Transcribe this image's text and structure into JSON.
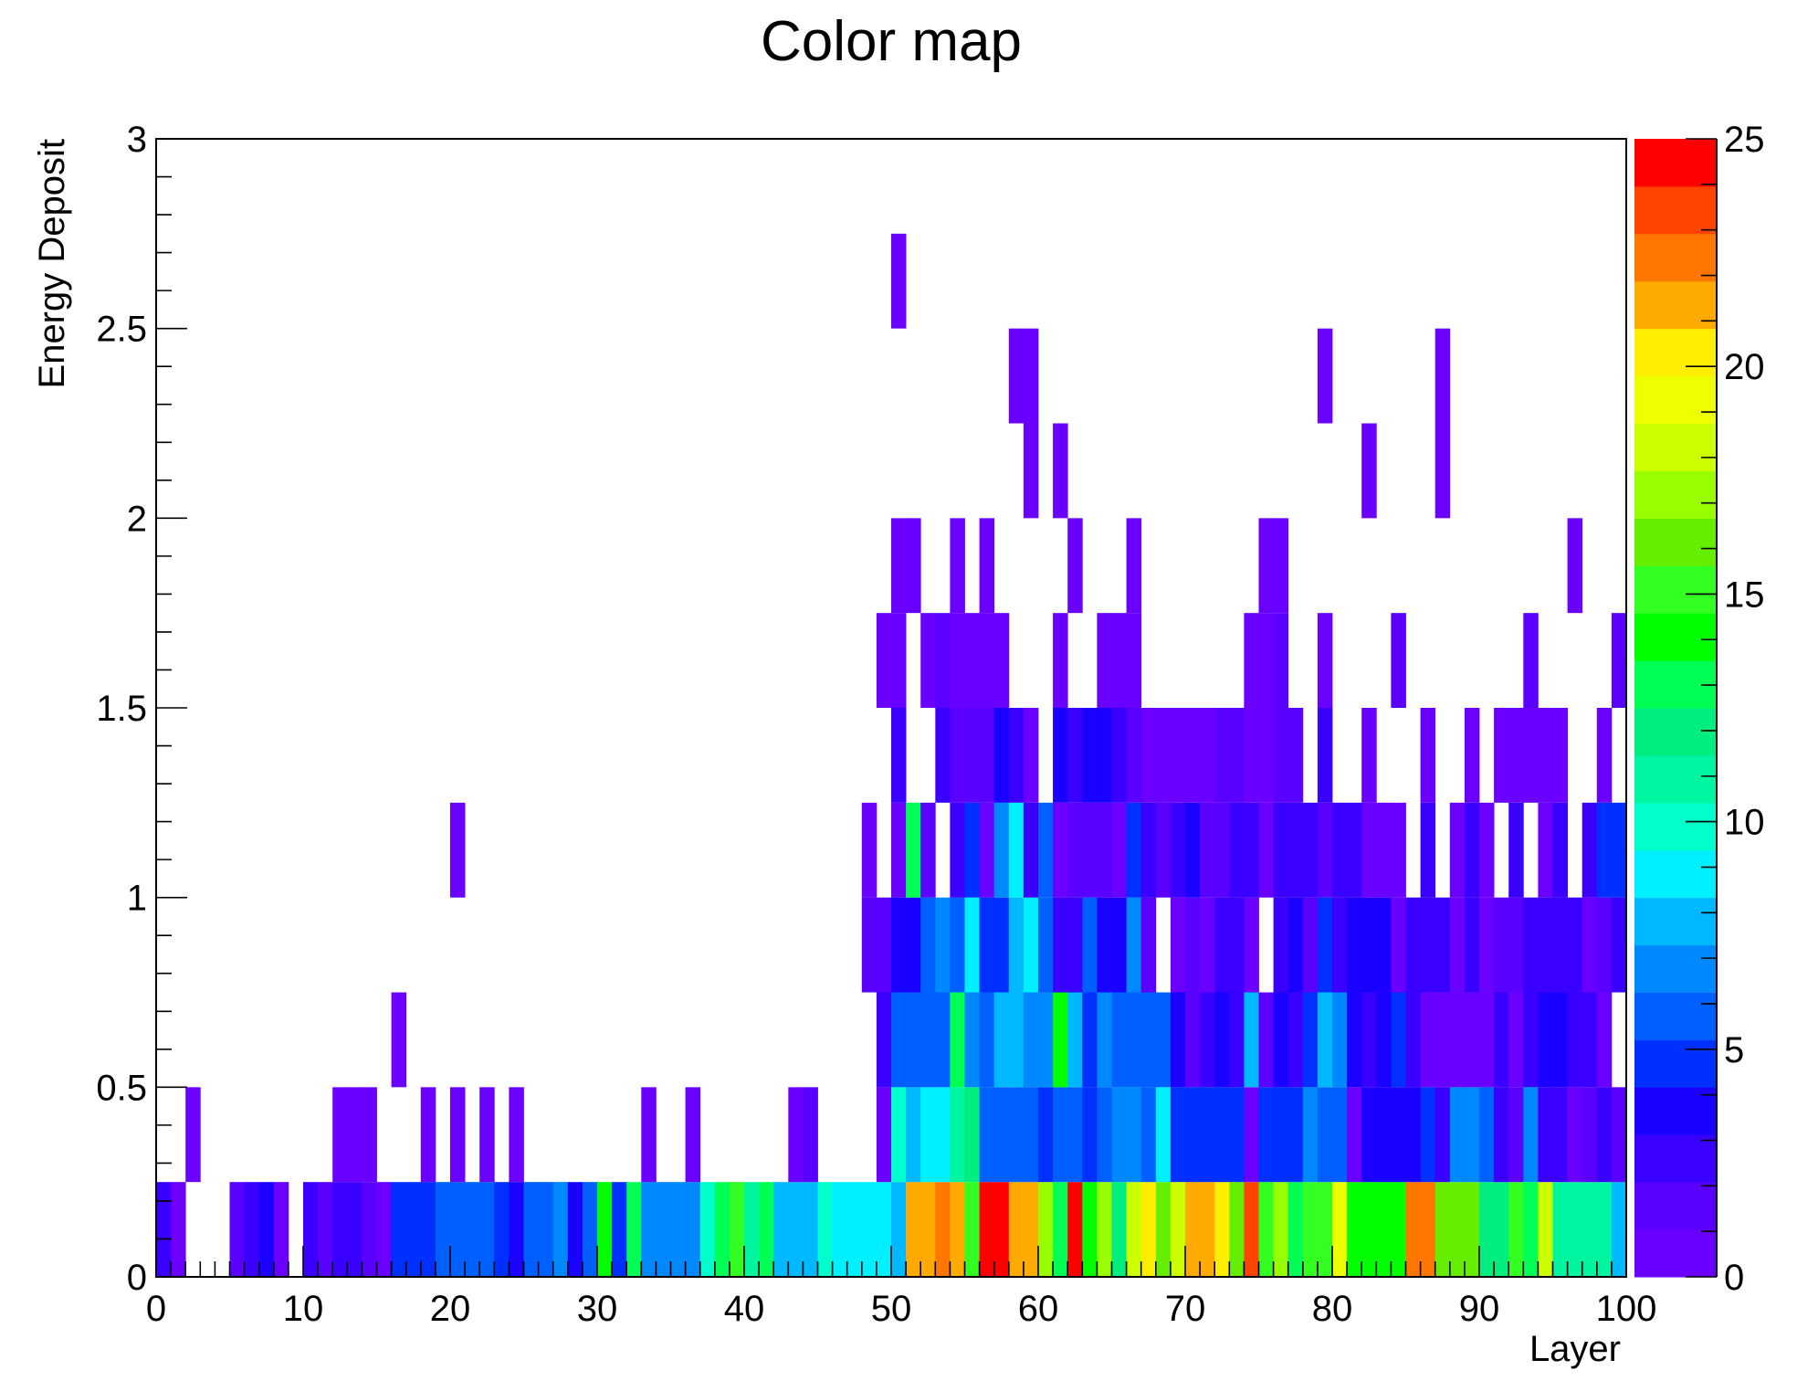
{
  "chart_data": {
    "type": "heatmap",
    "title": "Color map",
    "xlabel": "Layer",
    "ylabel": "Energy Deposit",
    "xlim": [
      0,
      100
    ],
    "ylim": [
      0,
      3
    ],
    "zlim": [
      0,
      25
    ],
    "x_bin_width": 1,
    "y_bin_width": 0.25,
    "x_ticks": [
      "0",
      "10",
      "20",
      "30",
      "40",
      "50",
      "60",
      "70",
      "80",
      "90",
      "100"
    ],
    "y_ticks": [
      "0",
      "0.5",
      "1",
      "1.5",
      "2",
      "2.5",
      "3"
    ],
    "z_ticks": [
      "0",
      "5",
      "10",
      "15",
      "20",
      "25"
    ],
    "palette": [
      "#6a00ff",
      "#5a00ff",
      "#3a00ff",
      "#1a00ff",
      "#0030ff",
      "#0060ff",
      "#0088ff",
      "#00b8ff",
      "#00f0ff",
      "#00ffcc",
      "#00f5a0",
      "#00ee80",
      "#00ff55",
      "#00ff00",
      "#33ff22",
      "#66ee00",
      "#99ff00",
      "#ccff00",
      "#eeff00",
      "#ffee00",
      "#ffaa00",
      "#ff7700",
      "#ff4400",
      "#ff0000"
    ],
    "rows": [
      {
        "y": 0.125,
        "values": [
          3,
          1,
          0,
          0,
          0,
          2,
          3,
          4,
          1,
          0,
          3,
          2,
          3,
          3,
          2,
          1,
          5,
          5,
          5,
          6,
          6,
          6,
          6,
          5,
          4,
          6,
          6,
          7,
          4,
          6,
          14,
          5,
          13,
          7,
          7,
          7,
          7,
          10,
          13,
          15,
          11,
          13,
          8,
          8,
          8,
          10,
          9,
          9,
          9,
          9,
          8,
          21,
          21,
          22,
          21,
          15,
          24,
          24,
          21,
          21,
          17,
          13,
          24,
          14,
          17,
          12,
          18,
          20,
          16,
          18,
          21,
          21,
          20,
          16,
          23,
          15,
          17,
          13,
          15,
          15,
          19,
          14,
          14,
          14,
          14,
          22,
          22,
          16,
          16,
          16,
          12,
          12,
          15,
          13,
          18,
          11,
          11,
          11,
          11,
          8
        ]
      },
      {
        "y": 0.375,
        "values": [
          0,
          0,
          1,
          0,
          0,
          0,
          0,
          0,
          0,
          0,
          0,
          0,
          1,
          1,
          1,
          0,
          0,
          0,
          1,
          0,
          1,
          0,
          1,
          0,
          1,
          0,
          0,
          0,
          0,
          0,
          0,
          0,
          0,
          1,
          0,
          0,
          1,
          0,
          0,
          0,
          0,
          0,
          0,
          1,
          2,
          0,
          0,
          0,
          0,
          1,
          10,
          8,
          9,
          9,
          11,
          12,
          6,
          6,
          6,
          6,
          5,
          6,
          6,
          5,
          6,
          7,
          7,
          6,
          9,
          5,
          5,
          5,
          5,
          5,
          1,
          5,
          5,
          5,
          7,
          6,
          6,
          1,
          4,
          4,
          4,
          4,
          5,
          3,
          7,
          7,
          6,
          3,
          2,
          7,
          3,
          3,
          1,
          2,
          3,
          2
        ]
      },
      {
        "y": 0.625,
        "values": [
          0,
          0,
          0,
          0,
          0,
          0,
          0,
          0,
          0,
          0,
          0,
          0,
          0,
          0,
          0,
          0,
          1,
          0,
          0,
          0,
          0,
          0,
          0,
          0,
          0,
          0,
          0,
          0,
          0,
          0,
          0,
          0,
          0,
          0,
          0,
          0,
          0,
          0,
          0,
          0,
          0,
          0,
          0,
          0,
          0,
          0,
          0,
          0,
          0,
          3,
          6,
          6,
          6,
          6,
          13,
          7,
          6,
          8,
          8,
          7,
          7,
          14,
          8,
          5,
          7,
          6,
          6,
          6,
          6,
          4,
          2,
          3,
          4,
          3,
          8,
          2,
          4,
          3,
          5,
          8,
          7,
          4,
          3,
          4,
          5,
          3,
          1,
          1,
          1,
          1,
          1,
          3,
          1,
          3,
          4,
          4,
          3,
          3,
          1,
          0
        ]
      },
      {
        "y": 0.875,
        "values": [
          0,
          0,
          0,
          0,
          0,
          0,
          0,
          0,
          0,
          0,
          0,
          0,
          0,
          0,
          0,
          0,
          0,
          0,
          0,
          0,
          0,
          0,
          0,
          0,
          0,
          0,
          0,
          0,
          0,
          0,
          0,
          0,
          0,
          0,
          0,
          0,
          0,
          0,
          0,
          0,
          0,
          0,
          0,
          0,
          0,
          0,
          0,
          0,
          2,
          2,
          4,
          4,
          6,
          7,
          6,
          9,
          5,
          5,
          8,
          9,
          6,
          3,
          3,
          6,
          4,
          4,
          7,
          2,
          0,
          1,
          2,
          1,
          3,
          3,
          1,
          0,
          3,
          4,
          2,
          5,
          3,
          4,
          4,
          4,
          1,
          3,
          3,
          3,
          1,
          3,
          1,
          2,
          2,
          3,
          3,
          3,
          3,
          1,
          2,
          3
        ]
      },
      {
        "y": 1.125,
        "values": [
          0,
          0,
          0,
          0,
          0,
          0,
          0,
          0,
          0,
          0,
          0,
          0,
          0,
          0,
          0,
          0,
          0,
          0,
          0,
          0,
          1,
          0,
          0,
          0,
          0,
          0,
          0,
          0,
          0,
          0,
          0,
          0,
          0,
          0,
          0,
          0,
          0,
          0,
          0,
          0,
          0,
          0,
          0,
          0,
          0,
          0,
          0,
          0,
          1,
          0,
          1,
          13,
          2,
          0,
          3,
          5,
          1,
          7,
          9,
          3,
          6,
          1,
          2,
          2,
          2,
          1,
          5,
          3,
          2,
          3,
          4,
          2,
          2,
          3,
          3,
          1,
          3,
          3,
          3,
          2,
          3,
          3,
          1,
          1,
          1,
          0,
          3,
          0,
          1,
          3,
          1,
          0,
          3,
          0,
          1,
          3,
          0,
          3,
          5,
          5
        ]
      },
      {
        "y": 1.375,
        "values": [
          0,
          0,
          0,
          0,
          0,
          0,
          0,
          0,
          0,
          0,
          0,
          0,
          0,
          0,
          0,
          0,
          0,
          0,
          0,
          0,
          0,
          0,
          0,
          0,
          0,
          0,
          0,
          0,
          0,
          0,
          0,
          0,
          0,
          0,
          0,
          0,
          0,
          0,
          0,
          0,
          0,
          0,
          0,
          0,
          0,
          0,
          0,
          0,
          0,
          0,
          3,
          0,
          0,
          3,
          2,
          2,
          2,
          4,
          3,
          1,
          0,
          4,
          3,
          4,
          4,
          3,
          2,
          1,
          1,
          1,
          1,
          1,
          2,
          2,
          1,
          1,
          2,
          2,
          0,
          3,
          0,
          0,
          1,
          0,
          0,
          0,
          1,
          0,
          0,
          1,
          0,
          1,
          1,
          1,
          1,
          1,
          0,
          0,
          1,
          0
        ]
      },
      {
        "y": 1.625,
        "values": [
          0,
          0,
          0,
          0,
          0,
          0,
          0,
          0,
          0,
          0,
          0,
          0,
          0,
          0,
          0,
          0,
          0,
          0,
          0,
          0,
          0,
          0,
          0,
          0,
          0,
          0,
          0,
          0,
          0,
          0,
          0,
          0,
          0,
          0,
          0,
          0,
          0,
          0,
          0,
          0,
          0,
          0,
          0,
          0,
          0,
          0,
          0,
          0,
          0,
          1,
          1,
          0,
          1,
          2,
          1,
          1,
          1,
          1,
          0,
          0,
          0,
          1,
          0,
          0,
          1,
          1,
          1,
          0,
          0,
          0,
          0,
          0,
          0,
          0,
          1,
          1,
          2,
          0,
          0,
          1,
          0,
          0,
          0,
          0,
          2,
          0,
          0,
          0,
          0,
          0,
          0,
          0,
          0,
          2,
          0,
          0,
          0,
          0,
          0,
          2
        ]
      },
      {
        "y": 1.875,
        "values": [
          0,
          0,
          0,
          0,
          0,
          0,
          0,
          0,
          0,
          0,
          0,
          0,
          0,
          0,
          0,
          0,
          0,
          0,
          0,
          0,
          0,
          0,
          0,
          0,
          0,
          0,
          0,
          0,
          0,
          0,
          0,
          0,
          0,
          0,
          0,
          0,
          0,
          0,
          0,
          0,
          0,
          0,
          0,
          0,
          0,
          0,
          0,
          0,
          0,
          0,
          1,
          1,
          0,
          0,
          1,
          0,
          1,
          0,
          0,
          0,
          0,
          0,
          1,
          0,
          0,
          0,
          1,
          0,
          0,
          0,
          0,
          0,
          0,
          0,
          0,
          1,
          1,
          0,
          0,
          0,
          0,
          0,
          0,
          0,
          0,
          0,
          0,
          0,
          0,
          0,
          0,
          0,
          0,
          0,
          0,
          0,
          1,
          0,
          0,
          0
        ]
      },
      {
        "y": 2.125,
        "values": [
          0,
          0,
          0,
          0,
          0,
          0,
          0,
          0,
          0,
          0,
          0,
          0,
          0,
          0,
          0,
          0,
          0,
          0,
          0,
          0,
          0,
          0,
          0,
          0,
          0,
          0,
          0,
          0,
          0,
          0,
          0,
          0,
          0,
          0,
          0,
          0,
          0,
          0,
          0,
          0,
          0,
          0,
          0,
          0,
          0,
          0,
          0,
          0,
          0,
          0,
          0,
          0,
          0,
          0,
          0,
          0,
          0,
          0,
          0,
          1,
          0,
          1,
          0,
          0,
          0,
          0,
          0,
          0,
          0,
          0,
          0,
          0,
          0,
          0,
          0,
          0,
          0,
          0,
          0,
          0,
          0,
          0,
          1,
          0,
          0,
          0,
          0,
          1,
          0,
          0,
          0,
          0,
          0,
          0,
          0,
          0,
          0,
          0,
          0,
          0
        ]
      },
      {
        "y": 2.375,
        "values": [
          0,
          0,
          0,
          0,
          0,
          0,
          0,
          0,
          0,
          0,
          0,
          0,
          0,
          0,
          0,
          0,
          0,
          0,
          0,
          0,
          0,
          0,
          0,
          0,
          0,
          0,
          0,
          0,
          0,
          0,
          0,
          0,
          0,
          0,
          0,
          0,
          0,
          0,
          0,
          0,
          0,
          0,
          0,
          0,
          0,
          0,
          0,
          0,
          0,
          0,
          0,
          0,
          0,
          0,
          0,
          0,
          0,
          0,
          1,
          1,
          0,
          0,
          0,
          0,
          0,
          0,
          0,
          0,
          0,
          0,
          0,
          0,
          0,
          0,
          0,
          0,
          0,
          0,
          0,
          1,
          0,
          0,
          0,
          0,
          0,
          0,
          0,
          1,
          0,
          0,
          0,
          0,
          0,
          0,
          0,
          0,
          0,
          0,
          0,
          0
        ]
      },
      {
        "y": 2.625,
        "values": [
          0,
          0,
          0,
          0,
          0,
          0,
          0,
          0,
          0,
          0,
          0,
          0,
          0,
          0,
          0,
          0,
          0,
          0,
          0,
          0,
          0,
          0,
          0,
          0,
          0,
          0,
          0,
          0,
          0,
          0,
          0,
          0,
          0,
          0,
          0,
          0,
          0,
          0,
          0,
          0,
          0,
          0,
          0,
          0,
          0,
          0,
          0,
          0,
          0,
          0,
          1,
          0,
          0,
          0,
          0,
          0,
          0,
          0,
          0,
          0,
          0,
          0,
          0,
          0,
          0,
          0,
          0,
          0,
          0,
          0,
          0,
          0,
          0,
          0,
          0,
          0,
          0,
          0,
          0,
          0,
          0,
          0,
          0,
          0,
          0,
          0,
          0,
          0,
          0,
          0,
          0,
          0,
          0,
          0,
          0,
          0,
          0,
          0,
          0,
          0
        ]
      }
    ]
  }
}
